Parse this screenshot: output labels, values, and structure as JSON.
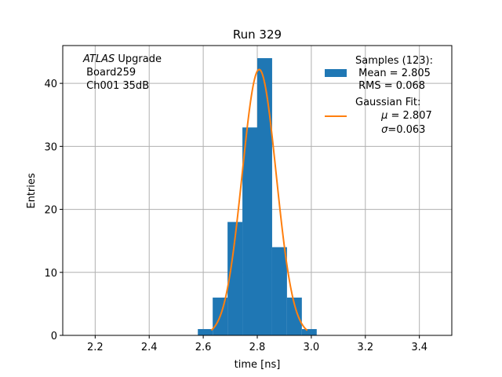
{
  "chart_data": {
    "type": "bar",
    "title": "Run 329",
    "xlabel": "time [ns]",
    "ylabel": "Entries",
    "xlim": [
      2.08,
      3.52
    ],
    "ylim": [
      0,
      46
    ],
    "xticks": [
      2.2,
      2.4,
      2.6,
      2.8,
      3.0,
      3.2,
      3.4
    ],
    "yticks": [
      0,
      10,
      20,
      30,
      40
    ],
    "grid": true,
    "histogram": {
      "bin_edges": [
        2.58,
        2.635,
        2.69,
        2.745,
        2.8,
        2.855,
        2.91,
        2.965,
        3.02
      ],
      "counts": [
        1,
        6,
        18,
        33,
        44,
        14,
        6,
        1
      ],
      "color": "#1f77b4"
    },
    "gaussian_fit": {
      "mu": 2.807,
      "sigma": 0.063,
      "amplitude": 42.2,
      "x_range": [
        2.63,
        2.985
      ],
      "color": "#ff7f0e"
    },
    "annotation": {
      "line1_italic": "ATLAS",
      "line1_rest": " Upgrade",
      "line2": " Board259",
      "line3": " Ch001 35dB"
    },
    "legend": {
      "position": "top-right",
      "samples": {
        "line1": "Samples (123):",
        "line2": " Mean = 2.805",
        "line3": " RMS = 0.068"
      },
      "fit": {
        "line1": "Gaussian Fit:",
        "line2_symbol": "μ",
        "line2_rest": " = 2.807",
        "line3_symbol": "σ",
        "line3_rest": "=0.063"
      }
    }
  }
}
